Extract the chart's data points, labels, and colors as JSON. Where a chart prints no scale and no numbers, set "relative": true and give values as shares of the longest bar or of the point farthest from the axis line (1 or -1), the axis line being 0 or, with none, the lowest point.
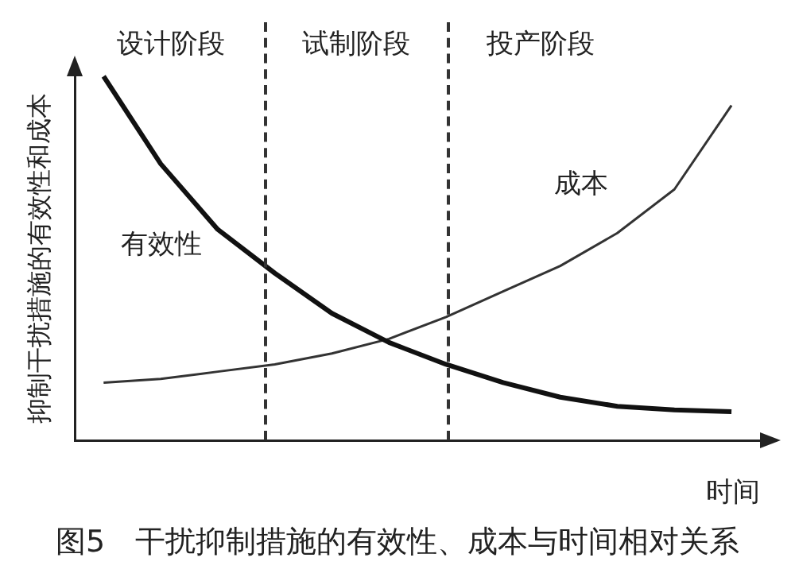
{
  "chart_data": {
    "type": "line",
    "title": "图5　干扰抑制措施的有效性、成本与时间相对关系",
    "xlabel": "时间",
    "ylabel": "抑制干扰措施的有效性和成本",
    "relative": true,
    "legend": false,
    "marker": "none",
    "line_style": "solid",
    "categories": [
      null,
      null,
      null,
      null,
      null,
      null,
      null,
      null,
      null,
      null,
      null,
      null
    ],
    "series": [
      {
        "name": "有效性",
        "color": "#111111",
        "values": [
          1,
          0.76,
          0.58,
          0.46,
          0.35,
          0.27,
          0.21,
          0.16,
          0.12,
          0.095,
          0.085,
          0.08
        ]
      },
      {
        "name": "成本",
        "color": "#333333",
        "values": [
          0.16,
          0.17,
          0.19,
          0.21,
          0.24,
          0.28,
          0.34,
          0.41,
          0.48,
          0.57,
          0.69,
          0.92
        ]
      }
    ],
    "annotations": [
      "设计阶段",
      "试制阶段",
      "投产阶段"
    ]
  }
}
